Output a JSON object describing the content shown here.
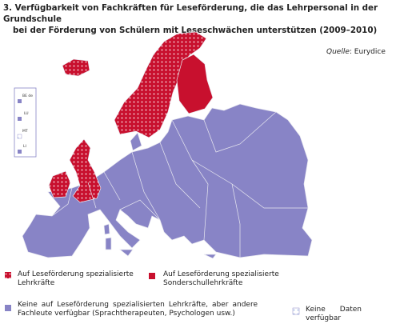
{
  "title": [
    "3. Verfügbarkeit von Fachkräften für Leseförderung, die das Lehrpersonal in der Grundschule",
    "bei der Förderung von Schülern mit Leseschwächen unterstützen (2009–2010)"
  ],
  "source": {
    "label": "Quelle",
    "text": ": Eurydice"
  },
  "inset": [
    "BE de",
    "LU",
    "MT",
    "LI"
  ],
  "legend": [
    "Auf Leseförderung spezialisierte Lehrkräfte",
    "Auf Leseförderung spezialisierte Sonderschullehrkräfte",
    "Keine auf Leseförderung spezialisierten Lehrkräfte, aber andere Fachleute verfügbar (Sprachtherapeuten, Psychologen usw.)",
    "Keine Daten verfügbar"
  ]
}
